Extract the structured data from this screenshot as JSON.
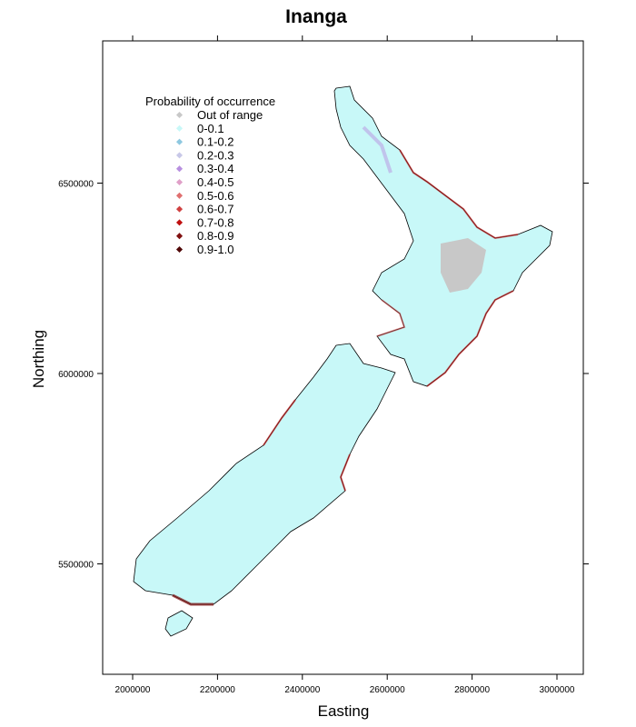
{
  "chart_data": {
    "type": "heatmap",
    "title": "Inanga",
    "xlabel": "Easting",
    "ylabel": "Northing",
    "x_ticks": [
      2000000,
      2200000,
      2400000,
      2600000,
      2800000,
      3000000
    ],
    "y_ticks": [
      5500000,
      6000000,
      6500000
    ],
    "x_tick_labels": [
      "2000000",
      "2200000",
      "2400000",
      "2600000",
      "2800000",
      "3000000"
    ],
    "y_tick_labels": [
      "5500000",
      "6000000",
      "6500000"
    ],
    "legend": {
      "title": "Probability of occurrence",
      "placement": "top-left",
      "entries": [
        {
          "label": "Out of range",
          "color": "#c8c8c8"
        },
        {
          "label": "0-0.1",
          "color": "#c8f8f8"
        },
        {
          "label": "0.1-0.2",
          "color": "#8ec8e0"
        },
        {
          "label": "0.2-0.3",
          "color": "#c8c8e8"
        },
        {
          "label": "0.3-0.4",
          "color": "#b890e0"
        },
        {
          "label": "0.4-0.5",
          "color": "#e0a0c8"
        },
        {
          "label": "0.5-0.6",
          "color": "#e07070"
        },
        {
          "label": "0.6-0.7",
          "color": "#d04040"
        },
        {
          "label": "0.7-0.8",
          "color": "#c01010"
        },
        {
          "label": "0.8-0.9",
          "color": "#801010"
        },
        {
          "label": "0.9-1.0",
          "color": "#500808"
        }
      ]
    },
    "grid": false
  }
}
